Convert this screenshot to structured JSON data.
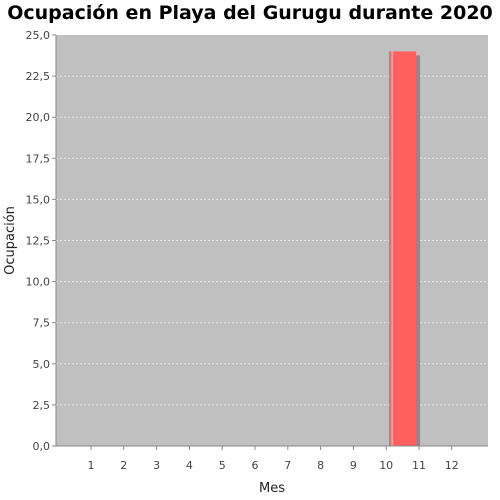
{
  "chart_data": {
    "type": "bar",
    "title": "Ocupación en Playa del Gurugu durante 2020",
    "xlabel": "Mes",
    "ylabel": "Ocupación",
    "categories": [
      "1",
      "2",
      "3",
      "4",
      "5",
      "6",
      "7",
      "8",
      "9",
      "10",
      "11",
      "12"
    ],
    "values": [
      0,
      0,
      0,
      0,
      0,
      0,
      0,
      0,
      0,
      24,
      0,
      0
    ],
    "ylim": [
      0,
      25
    ],
    "yticks": [
      "0,0",
      "2,5",
      "5,0",
      "7,5",
      "10,0",
      "12,5",
      "15,0",
      "17,5",
      "20,0",
      "22,5",
      "25,0"
    ],
    "grid": true,
    "colors": {
      "plot_background": "#c0c0c0",
      "gridline": "#e8e8e8",
      "bar": "#ff5f5f",
      "bar_highlight": "#ff9a9a",
      "bar_shadow": "#8a8a8a",
      "axis_line": "#888888"
    }
  }
}
